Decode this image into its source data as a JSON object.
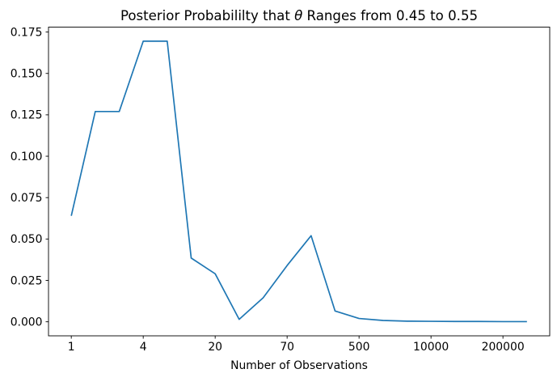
{
  "figure": {
    "title_prefix": "Posterior Probabililty that ",
    "title_theta": "θ",
    "title_suffix": " Ranges from 0.45 to 0.55"
  },
  "chart_data": {
    "type": "line",
    "title": "Posterior Probabililty that θ Ranges from 0.45 to 0.55",
    "xlabel": "Number of Observations",
    "ylabel": "",
    "x_tick_labels": [
      "1",
      "4",
      "20",
      "70",
      "500",
      "10000",
      "200000"
    ],
    "x_tick_indices": [
      0,
      3,
      6,
      9,
      12,
      15,
      18
    ],
    "n_points": 20,
    "series": [
      {
        "name": "posterior-probability",
        "color": "#1f77b4",
        "values": [
          0.064,
          0.127,
          0.127,
          0.1695,
          0.1695,
          0.0385,
          0.029,
          0.0015,
          0.0145,
          0.034,
          0.052,
          0.0065,
          0.002,
          0.0008,
          0.0004,
          0.0003,
          0.0002,
          0.0002,
          0.0001,
          0.0001
        ]
      }
    ],
    "y_ticks": [
      0.0,
      0.025,
      0.05,
      0.075,
      0.1,
      0.125,
      0.15,
      0.175
    ],
    "y_tick_format_decimals": 3,
    "xlim_index": [
      -0.95,
      19.95
    ],
    "ylim": [
      -0.008475,
      0.177975
    ],
    "grid": false,
    "legend_position": "none"
  },
  "style": {
    "line_color": "#1f77b4",
    "axis_color": "#000000",
    "background_color": "#ffffff"
  }
}
